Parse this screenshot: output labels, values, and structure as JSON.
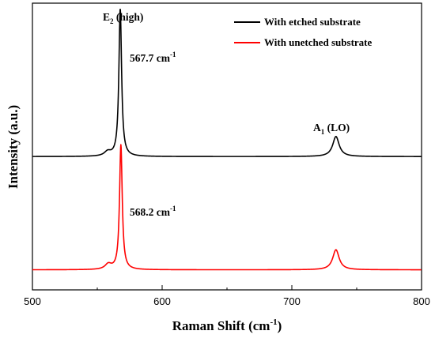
{
  "chart_data": {
    "type": "line",
    "xlabel": "Raman Shift (cm",
    "xlabel_sup": "-1",
    "xlabel_tail": ")",
    "ylabel": "Intensity (a.u.)",
    "xlim": [
      500,
      800
    ],
    "ylim": [
      0,
      1
    ],
    "xticks": [
      500,
      600,
      700,
      800
    ],
    "y_ticks_labeled": false,
    "grid": false,
    "legend_position": "top-right",
    "series": [
      {
        "name": "With etched substrate",
        "color": "#000000",
        "baseline": 0.465,
        "peaks": [
          {
            "center": 558.0,
            "height": 0.015,
            "width": 3.0
          },
          {
            "center": 567.7,
            "height": 0.515,
            "width": 1.25
          },
          {
            "center": 734.0,
            "height": 0.07,
            "width": 3.0
          }
        ]
      },
      {
        "name": "With unetched substrate",
        "color": "#ff0000",
        "baseline": 0.07,
        "peaks": [
          {
            "center": 558.5,
            "height": 0.018,
            "width": 3.0
          },
          {
            "center": 568.2,
            "height": 0.435,
            "width": 1.25
          },
          {
            "center": 734.0,
            "height": 0.07,
            "width": 3.0
          }
        ]
      }
    ],
    "annotations": {
      "e2_main": "E",
      "e2_sub": "2",
      "e2_tail": " (high)",
      "a1_main": "A",
      "a1_sub": "1",
      "a1_tail": " (LO)",
      "peak1_value": "567.7 cm",
      "peak1_sup": "-1",
      "peak2_value": "568.2 cm",
      "peak2_sup": "-1"
    }
  }
}
